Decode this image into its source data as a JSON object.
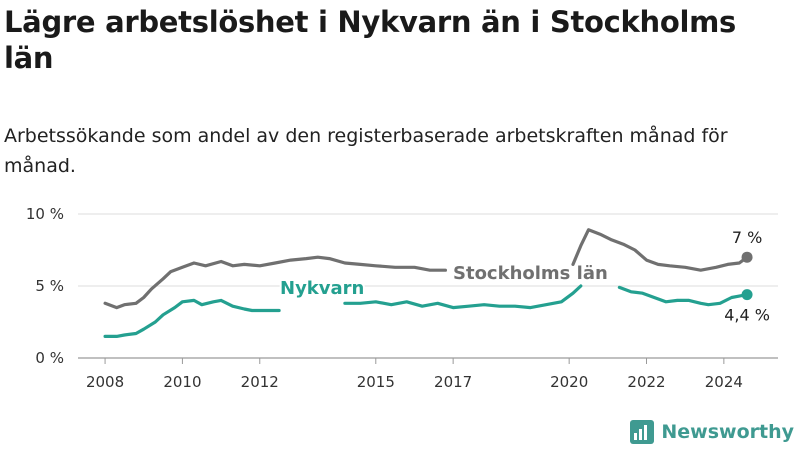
{
  "header": {
    "title": "Lägre arbetslöshet i Nykvarn än i Stockholms län",
    "subtitle": "Arbetssökande som andel av den registerbaserade arbetskraften månad för månad."
  },
  "brand": {
    "name": "Newsworthy",
    "color": "#3f9a91"
  },
  "chart_data": {
    "type": "line",
    "title": "Lägre arbetslöshet i Nykvarn än i Stockholms län",
    "subtitle": "Arbetssökande som andel av den registerbaserade arbetskraften månad för månad.",
    "xlabel": "",
    "ylabel": "",
    "ylim": [
      0,
      10
    ],
    "yticks": [
      0,
      5,
      10
    ],
    "ytick_labels": [
      "0 %",
      "5 %",
      "10 %"
    ],
    "xticks": [
      2008,
      2010,
      2012,
      2015,
      2017,
      2020,
      2022,
      2024
    ],
    "xtick_labels": [
      "2008",
      "2010",
      "2012",
      "2015",
      "2017",
      "2020",
      "2022",
      "2024"
    ],
    "xlim": [
      2007.3,
      2025.4
    ],
    "grid": true,
    "series": [
      {
        "name": "Stockholms län",
        "color": "#707070",
        "end_label": "7 %",
        "segments": [
          {
            "x": [
              2008.0,
              2008.3,
              2008.5,
              2008.8,
              2009.0,
              2009.2,
              2009.5,
              2009.7,
              2010.0,
              2010.3,
              2010.6,
              2011.0,
              2011.3,
              2011.6,
              2012.0,
              2012.4,
              2012.8,
              2013.2,
              2013.5,
              2013.8,
              2014.2,
              2014.6,
              2015.0,
              2015.5,
              2016.0,
              2016.4,
              2016.8
            ],
            "y": [
              3.8,
              3.5,
              3.7,
              3.8,
              4.2,
              4.8,
              5.5,
              6.0,
              6.3,
              6.6,
              6.4,
              6.7,
              6.4,
              6.5,
              6.4,
              6.6,
              6.8,
              6.9,
              7.0,
              6.9,
              6.6,
              6.5,
              6.4,
              6.3,
              6.3,
              6.1,
              6.1
            ]
          },
          {
            "x": [
              2020.1,
              2020.3,
              2020.5,
              2020.8,
              2021.1,
              2021.4,
              2021.7,
              2022.0,
              2022.3,
              2022.6,
              2023.0,
              2023.4,
              2023.8,
              2024.1,
              2024.4,
              2024.6
            ],
            "y": [
              6.5,
              7.8,
              8.9,
              8.6,
              8.2,
              7.9,
              7.5,
              6.8,
              6.5,
              6.4,
              6.3,
              6.1,
              6.3,
              6.5,
              6.6,
              7.0
            ]
          }
        ]
      },
      {
        "name": "Nykvarn",
        "color": "#24a090",
        "end_label": "4,4 %",
        "segments": [
          {
            "x": [
              2008.0,
              2008.3,
              2008.5,
              2008.8,
              2009.0,
              2009.3,
              2009.5,
              2009.8,
              2010.0,
              2010.3,
              2010.5,
              2010.8,
              2011.0,
              2011.3,
              2011.6,
              2011.8,
              2012.0,
              2012.3,
              2012.5
            ],
            "y": [
              1.5,
              1.5,
              1.6,
              1.7,
              2.0,
              2.5,
              3.0,
              3.5,
              3.9,
              4.0,
              3.7,
              3.9,
              4.0,
              3.6,
              3.4,
              3.3,
              3.3,
              3.3,
              3.3
            ]
          },
          {
            "x": [
              2014.2,
              2014.6,
              2015.0,
              2015.4,
              2015.8,
              2016.2,
              2016.6,
              2017.0,
              2017.4,
              2017.8,
              2018.2,
              2018.6,
              2019.0,
              2019.4,
              2019.8,
              2020.1,
              2020.3
            ],
            "y": [
              3.8,
              3.8,
              3.9,
              3.7,
              3.9,
              3.6,
              3.8,
              3.5,
              3.6,
              3.7,
              3.6,
              3.6,
              3.5,
              3.7,
              3.9,
              4.5,
              5.0
            ]
          },
          {
            "x": [
              2021.3,
              2021.6,
              2021.9,
              2022.2,
              2022.5,
              2022.8,
              2023.1,
              2023.4,
              2023.6,
              2023.9,
              2024.2,
              2024.4,
              2024.6
            ],
            "y": [
              4.9,
              4.6,
              4.5,
              4.2,
              3.9,
              4.0,
              4.0,
              3.8,
              3.7,
              3.8,
              4.2,
              4.3,
              4.4
            ]
          }
        ]
      }
    ]
  }
}
